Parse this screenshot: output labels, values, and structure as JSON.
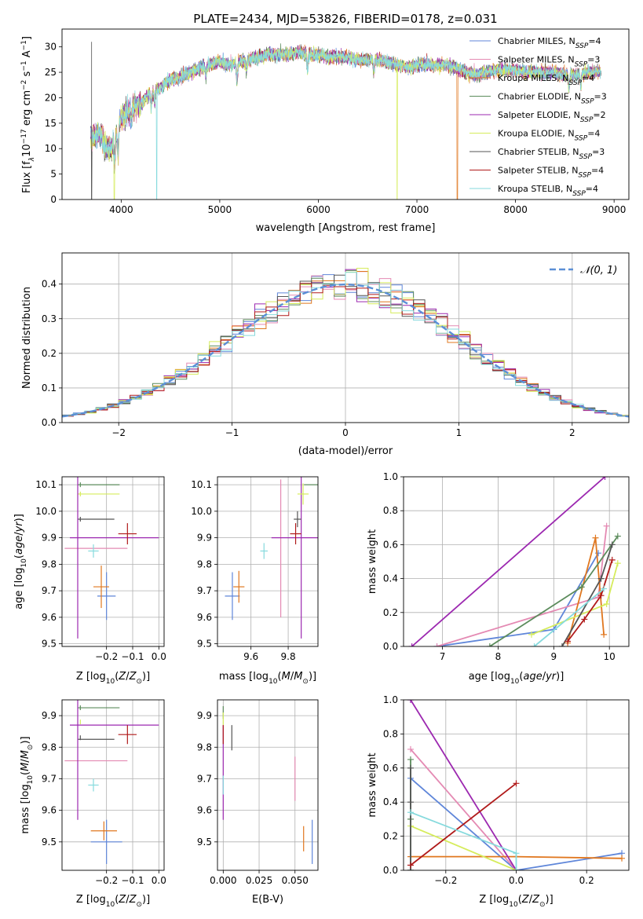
{
  "figure": {
    "title": "PLATE=2434, MJD=53826, FIBERID=0178, z=0.031"
  },
  "colors": {
    "Chabrier MILES": "#5f86d9",
    "Salpeter MILES": "#e48ab3",
    "Kroupa MILES": "#e0771f",
    "Chabrier ELODIE": "#5c8c5c",
    "Salpeter ELODIE": "#9c28b0",
    "Kroupa ELODIE": "#d6ec5c",
    "Chabrier STELIB": "#555555",
    "Salpeter STELIB": "#b01a1a",
    "Kroupa STELIB": "#86dadd",
    "normal_curve": "#5b8fd6",
    "grid": "#b0b0b0"
  },
  "chart_data": [
    {
      "id": "spectrum",
      "type": "line",
      "xlabel": "wavelength [Angstrom, rest frame]",
      "ylabel": "Flux [f",
      "ylabel_pre": "Flux [f",
      "ylabel_sub": "λ",
      "ylabel_mid": "10",
      "ylabel_exp1": "−17",
      "ylabel_mid2": " erg cm",
      "ylabel_exp2": "−2",
      "ylabel_mid3": " s",
      "ylabel_exp3": "−1",
      "ylabel_mid4": " A",
      "ylabel_exp4": "−1",
      "ylabel_end": "]",
      "xlim": [
        3400,
        9150
      ],
      "ylim": [
        0,
        33.5
      ],
      "xticks": [
        4000,
        5000,
        6000,
        7000,
        8000,
        9000
      ],
      "yticks": [
        0,
        5,
        10,
        15,
        20,
        25,
        30
      ],
      "grid": false,
      "legend_position": "upper-right",
      "continuum": {
        "x": [
          3680,
          3700,
          3750,
          3800,
          3850,
          3900,
          3950,
          4000,
          4050,
          4100,
          4200,
          4300,
          4400,
          4500,
          4600,
          4700,
          4800,
          4900,
          5000,
          5100,
          5200,
          5300,
          5400,
          5500,
          5600,
          5700,
          5800,
          5900,
          6000,
          6100,
          6200,
          6300,
          6400,
          6500,
          6600,
          6700,
          6800,
          6900,
          7000,
          7100,
          7200,
          7300,
          7400,
          7500,
          7600,
          7700,
          7800,
          7900,
          8000,
          8100,
          8200,
          8300,
          8400,
          8500,
          8600,
          8700,
          8800,
          8870
        ],
        "y": [
          14,
          12,
          13,
          12.5,
          10,
          10,
          13,
          16,
          17,
          18,
          19,
          21,
          22,
          23.5,
          24,
          25,
          26,
          26.5,
          27,
          26.5,
          27,
          27.5,
          28,
          28.5,
          28.5,
          28.5,
          29,
          28.5,
          28.5,
          28,
          28,
          28,
          27.5,
          27.5,
          27.5,
          27,
          26.5,
          26,
          26.5,
          26.5,
          26.5,
          26.5,
          26,
          25,
          24.5,
          25,
          25.5,
          25.5,
          25.5,
          25,
          25,
          25,
          25,
          24.5,
          24.5,
          25,
          25,
          25
        ]
      },
      "series": [
        {
          "name": "Chabrier MILES",
          "nssp": "4",
          "drops": []
        },
        {
          "name": "Salpeter MILES",
          "nssp": "3",
          "drops": []
        },
        {
          "name": "Kroupa MILES",
          "nssp": "4",
          "drops": [
            7410
          ]
        },
        {
          "name": "Chabrier ELODIE",
          "nssp": "3",
          "drops": []
        },
        {
          "name": "Salpeter ELODIE",
          "nssp": "2",
          "drops": []
        },
        {
          "name": "Kroupa ELODIE",
          "nssp": "4",
          "drops": [
            3930,
            6800
          ]
        },
        {
          "name": "Chabrier STELIB",
          "nssp": "3",
          "drops": [
            3700
          ]
        },
        {
          "name": "Salpeter STELIB",
          "nssp": "4",
          "drops": []
        },
        {
          "name": "Kroupa STELIB",
          "nssp": "4",
          "drops": [
            4360
          ]
        }
      ]
    },
    {
      "id": "residuals",
      "type": "histogram",
      "xlabel": "(data-model)/error",
      "ylabel": "Normed distribution",
      "xlim": [
        -2.5,
        2.5
      ],
      "ylim": [
        0,
        0.49
      ],
      "xticks": [
        -2,
        -1,
        0,
        1,
        2
      ],
      "xtick_labels": [
        "−2",
        "−1",
        "0",
        "1",
        "2"
      ],
      "yticks": [
        0.0,
        0.1,
        0.2,
        0.3,
        0.4
      ],
      "ytick_labels": [
        "0.0",
        "0.1",
        "0.2",
        "0.3",
        "0.4"
      ],
      "grid": true,
      "legend": "𝒩(0, 1)",
      "legend_position": "upper-right",
      "normal": {
        "mean": 0,
        "sigma": 1
      },
      "bin_width": 0.1
    },
    {
      "id": "age-vs-Z",
      "type": "scatter",
      "xlabel": "Z [log",
      "ylabel": "age  [log",
      "xlim": [
        -0.37,
        0.02
      ],
      "ylim": [
        9.49,
        10.13
      ],
      "xticks": [
        -0.2,
        -0.1,
        0.0
      ],
      "xtick_labels": [
        "−0.2",
        "−0.1",
        "0.0"
      ],
      "yticks": [
        9.5,
        9.6,
        9.7,
        9.8,
        9.9,
        10.0,
        10.1
      ],
      "ytick_labels": [
        "9.5",
        "9.6",
        "9.7",
        "9.8",
        "9.9",
        "10.0",
        "10.1"
      ],
      "grid": true,
      "points": [
        {
          "series": "Chabrier MILES",
          "x": -0.2,
          "y": 9.68,
          "xerr": 0.035,
          "yerr": 0.09
        },
        {
          "series": "Salpeter MILES",
          "x": -0.24,
          "y": 9.86,
          "xerr": 0.12,
          "yerr": 0.0
        },
        {
          "series": "Kroupa MILES",
          "x": -0.22,
          "y": 9.715,
          "xerr": 0.03,
          "yerr": 0.08
        },
        {
          "series": "Chabrier ELODIE",
          "x": -0.3,
          "y": 10.1,
          "xerr": 0.0,
          "yerr": 0.0
        },
        {
          "series": "Salpeter ELODIE",
          "x": -0.31,
          "y": 9.9,
          "xerr": 0.0,
          "yerr": 0.38
        },
        {
          "series": "Kroupa ELODIE",
          "x": -0.3,
          "y": 10.065,
          "xerr": 0.0,
          "yerr": 0.0
        },
        {
          "series": "Chabrier STELIB",
          "x": -0.3,
          "y": 9.97,
          "xerr": 0.0,
          "yerr": 0.0
        },
        {
          "series": "Salpeter STELIB",
          "x": -0.12,
          "y": 9.915,
          "xerr": 0.035,
          "yerr": 0.04
        },
        {
          "series": "Kroupa STELIB",
          "x": -0.25,
          "y": 9.85,
          "xerr": 0.02,
          "yerr": 0.025
        }
      ],
      "hbars": [
        {
          "series": "Chabrier ELODIE",
          "x0": -0.31,
          "x1": -0.15,
          "y": 10.1
        },
        {
          "series": "Kroupa ELODIE",
          "x0": -0.31,
          "x1": -0.15,
          "y": 10.065
        },
        {
          "series": "Chabrier STELIB",
          "x0": -0.31,
          "x1": -0.17,
          "y": 9.97
        },
        {
          "series": "Salpeter ELODIE",
          "x0": -0.34,
          "x1": 0.0,
          "y": 9.9
        }
      ]
    },
    {
      "id": "age-vs-mass",
      "type": "scatter",
      "xlabel": "mass [log",
      "xlim": [
        9.42,
        9.96
      ],
      "ylim": [
        9.49,
        10.13
      ],
      "xticks": [
        9.6,
        9.8
      ],
      "xtick_labels": [
        "9.6",
        "9.8"
      ],
      "yticks": [
        9.5,
        9.6,
        9.7,
        9.8,
        9.9,
        10.0,
        10.1
      ],
      "ytick_labels": [
        "9.5",
        "9.6",
        "9.7",
        "9.8",
        "9.9",
        "10.0",
        "10.1"
      ],
      "grid": true,
      "points": [
        {
          "series": "Chabrier MILES",
          "x": 9.5,
          "y": 9.68,
          "xerr": 0.04,
          "yerr": 0.09
        },
        {
          "series": "Salpeter MILES",
          "x": 9.76,
          "y": 9.86,
          "xerr": 0.0,
          "yerr": 0.26
        },
        {
          "series": "Kroupa MILES",
          "x": 9.535,
          "y": 9.715,
          "xerr": 0.03,
          "yerr": 0.06
        },
        {
          "series": "Chabrier ELODIE",
          "x": 9.925,
          "y": 10.1,
          "xerr": 0.04,
          "yerr": 0.0
        },
        {
          "series": "Salpeter ELODIE",
          "x": 9.87,
          "y": 9.9,
          "xerr": 0.16,
          "yerr": 0.38
        },
        {
          "series": "Kroupa ELODIE",
          "x": 9.88,
          "y": 10.065,
          "xerr": 0.03,
          "yerr": 0.04
        },
        {
          "series": "Chabrier STELIB",
          "x": 9.85,
          "y": 9.97,
          "xerr": 0.02,
          "yerr": 0.03
        },
        {
          "series": "Salpeter STELIB",
          "x": 9.84,
          "y": 9.915,
          "xerr": 0.03,
          "yerr": 0.04
        },
        {
          "series": "Kroupa STELIB",
          "x": 9.67,
          "y": 9.85,
          "xerr": 0.02,
          "yerr": 0.03
        }
      ]
    },
    {
      "id": "weight-vs-age",
      "type": "line",
      "xlabel": "age  [log",
      "ylabel": "mass weight",
      "xlim": [
        6.3,
        10.35
      ],
      "ylim": [
        0,
        1.0
      ],
      "xticks": [
        7,
        8,
        9,
        10
      ],
      "xtick_labels": [
        "7",
        "8",
        "9",
        "10"
      ],
      "yticks": [
        0.0,
        0.2,
        0.4,
        0.6,
        0.8,
        1.0
      ],
      "ytick_labels": [
        "0.0",
        "0.2",
        "0.4",
        "0.6",
        "0.8",
        "1.0"
      ],
      "grid": true,
      "series": [
        {
          "name": "Chabrier MILES",
          "x": [
            6.9,
            9.0,
            9.8
          ],
          "y": [
            0.0,
            0.1,
            0.55
          ]
        },
        {
          "name": "Salpeter MILES",
          "x": [
            6.9,
            9.8,
            9.95
          ],
          "y": [
            0.0,
            0.29,
            0.71
          ]
        },
        {
          "name": "Kroupa MILES",
          "x": [
            9.25,
            9.75,
            9.9
          ],
          "y": [
            0.02,
            0.64,
            0.07
          ]
        },
        {
          "name": "Chabrier ELODIE",
          "x": [
            7.85,
            9.5,
            10.15
          ],
          "y": [
            0.0,
            0.35,
            0.65
          ]
        },
        {
          "name": "Salpeter ELODIE",
          "x": [
            6.45,
            9.92
          ],
          "y": [
            0.0,
            1.0
          ]
        },
        {
          "name": "Kroupa ELODIE",
          "x": [
            8.6,
            9.95,
            10.15
          ],
          "y": [
            0.07,
            0.25,
            0.49
          ]
        },
        {
          "name": "Chabrier STELIB",
          "x": [
            9.15,
            9.85,
            10.05
          ],
          "y": [
            0.0,
            0.4,
            0.6
          ]
        },
        {
          "name": "Salpeter STELIB",
          "x": [
            9.25,
            9.55,
            9.85,
            10.05
          ],
          "y": [
            0.03,
            0.16,
            0.3,
            0.51
          ]
        },
        {
          "name": "Kroupa STELIB",
          "x": [
            8.65,
            9.9
          ],
          "y": [
            0.0,
            0.34
          ]
        }
      ]
    },
    {
      "id": "mass-vs-Z",
      "type": "scatter",
      "xlabel": "Z [log",
      "ylabel": "mass [log",
      "xlim": [
        -0.37,
        0.02
      ],
      "ylim": [
        9.41,
        9.95
      ],
      "xticks": [
        -0.2,
        -0.1,
        0.0
      ],
      "xtick_labels": [
        "−0.2",
        "−0.1",
        "0.0"
      ],
      "yticks": [
        9.5,
        9.6,
        9.7,
        9.8,
        9.9
      ],
      "ytick_labels": [
        "9.5",
        "9.6",
        "9.7",
        "9.8",
        "9.9"
      ],
      "grid": true,
      "points": [
        {
          "series": "Chabrier MILES",
          "x": -0.2,
          "y": 9.5,
          "xerr": 0.06,
          "yerr": 0.07
        },
        {
          "series": "Salpeter MILES",
          "x": -0.24,
          "y": 9.757,
          "xerr": 0.12,
          "yerr": 0.0
        },
        {
          "series": "Kroupa MILES",
          "x": -0.21,
          "y": 9.535,
          "xerr": 0.05,
          "yerr": 0.03
        },
        {
          "series": "Chabrier ELODIE",
          "x": -0.3,
          "y": 9.925,
          "xerr": 0.0,
          "yerr": 0.0
        },
        {
          "series": "Salpeter ELODIE",
          "x": -0.31,
          "y": 9.87,
          "xerr": 0.0,
          "yerr": 0.3
        },
        {
          "series": "Kroupa ELODIE",
          "x": -0.3,
          "y": 9.88,
          "xerr": 0.0,
          "yerr": 0.0
        },
        {
          "series": "Chabrier STELIB",
          "x": -0.3,
          "y": 9.83,
          "xerr": 0.0,
          "yerr": 0.0
        },
        {
          "series": "Salpeter STELIB",
          "x": -0.12,
          "y": 9.84,
          "xerr": 0.035,
          "yerr": 0.03
        },
        {
          "series": "Kroupa STELIB",
          "x": -0.25,
          "y": 9.68,
          "xerr": 0.02,
          "yerr": 0.02
        }
      ],
      "hbars": [
        {
          "series": "Chabrier ELODIE",
          "x0": -0.31,
          "x1": -0.15,
          "y": 9.925
        },
        {
          "series": "Salpeter ELODIE",
          "x0": -0.34,
          "x1": 0.0,
          "y": 9.87
        },
        {
          "series": "Chabrier STELIB",
          "x0": -0.31,
          "x1": -0.17,
          "y": 9.825
        }
      ]
    },
    {
      "id": "mass-vs-ebv",
      "type": "scatter",
      "xlabel": "E(B-V)",
      "xlim": [
        -0.004,
        0.066
      ],
      "ylim": [
        9.41,
        9.95
      ],
      "xticks": [
        0.0,
        0.025,
        0.05
      ],
      "xtick_labels": [
        "0.000",
        "0.025",
        "0.050"
      ],
      "yticks": [
        9.5,
        9.6,
        9.7,
        9.8,
        9.9
      ],
      "ytick_labels": [
        "9.5",
        "9.6",
        "9.7",
        "9.8",
        "9.9"
      ],
      "grid": true,
      "points": [
        {
          "series": "Chabrier MILES",
          "x": 0.062,
          "y": 9.5,
          "xerr": 0.0,
          "yerr": 0.07
        },
        {
          "series": "Salpeter MILES",
          "x": 0.05,
          "y": 9.7,
          "xerr": 0.0,
          "yerr": 0.07
        },
        {
          "series": "Kroupa MILES",
          "x": 0.056,
          "y": 9.51,
          "xerr": 0.0,
          "yerr": 0.04
        },
        {
          "series": "Chabrier ELODIE",
          "x": 0.0,
          "y": 9.91,
          "xerr": 0.0,
          "yerr": 0.02
        },
        {
          "series": "Salpeter ELODIE",
          "x": 0.0,
          "y": 9.72,
          "xerr": 0.0,
          "yerr": 0.15
        },
        {
          "series": "Kroupa ELODIE",
          "x": 0.0,
          "y": 9.89,
          "xerr": 0.0,
          "yerr": 0.02
        },
        {
          "series": "Chabrier STELIB",
          "x": 0.006,
          "y": 9.83,
          "xerr": 0.0,
          "yerr": 0.04
        },
        {
          "series": "Salpeter STELIB",
          "x": 0.0,
          "y": 9.84,
          "xerr": 0.0,
          "yerr": 0.03
        },
        {
          "series": "Kroupa STELIB",
          "x": 0.0,
          "y": 9.68,
          "xerr": 0.0,
          "yerr": 0.03
        }
      ]
    },
    {
      "id": "weight-vs-Z",
      "type": "line",
      "xlabel": "Z [log",
      "ylabel": "mass weight",
      "xlim": [
        -0.32,
        0.32
      ],
      "ylim": [
        0,
        1.0
      ],
      "xticks": [
        -0.2,
        0.0,
        0.2
      ],
      "xtick_labels": [
        "−0.2",
        "0.0",
        "0.2"
      ],
      "yticks": [
        0.0,
        0.2,
        0.4,
        0.6,
        0.8,
        1.0
      ],
      "ytick_labels": [
        "0.0",
        "0.2",
        "0.4",
        "0.6",
        "0.8",
        "1.0"
      ],
      "grid": true,
      "series": [
        {
          "name": "Chabrier MILES",
          "x": [
            -0.3,
            0.0,
            0.3
          ],
          "y": [
            0.54,
            0.0,
            0.1
          ]
        },
        {
          "name": "Salpeter MILES",
          "x": [
            -0.3,
            0.0
          ],
          "y": [
            0.71,
            0.0
          ]
        },
        {
          "name": "Kroupa MILES",
          "x": [
            -0.3,
            0.0,
            0.3
          ],
          "y": [
            0.08,
            0.08,
            0.07
          ]
        },
        {
          "name": "Chabrier ELODIE",
          "x": [
            -0.3,
            -0.3,
            -0.3
          ],
          "y": [
            0.65,
            0.3,
            0.0
          ]
        },
        {
          "name": "Salpeter ELODIE",
          "x": [
            -0.3,
            0.0
          ],
          "y": [
            1.0,
            0.0
          ]
        },
        {
          "name": "Kroupa ELODIE",
          "x": [
            -0.3,
            0.0
          ],
          "y": [
            0.26,
            0.0
          ]
        },
        {
          "name": "Chabrier STELIB",
          "x": [
            -0.3,
            -0.3,
            -0.3
          ],
          "y": [
            0.6,
            0.4,
            0.0
          ]
        },
        {
          "name": "Salpeter STELIB",
          "x": [
            -0.3,
            0.0
          ],
          "y": [
            0.03,
            0.51
          ]
        },
        {
          "name": "Kroupa STELIB",
          "x": [
            -0.3,
            0.0,
            0.0
          ],
          "y": [
            0.34,
            0.1,
            0.0
          ]
        }
      ]
    }
  ]
}
